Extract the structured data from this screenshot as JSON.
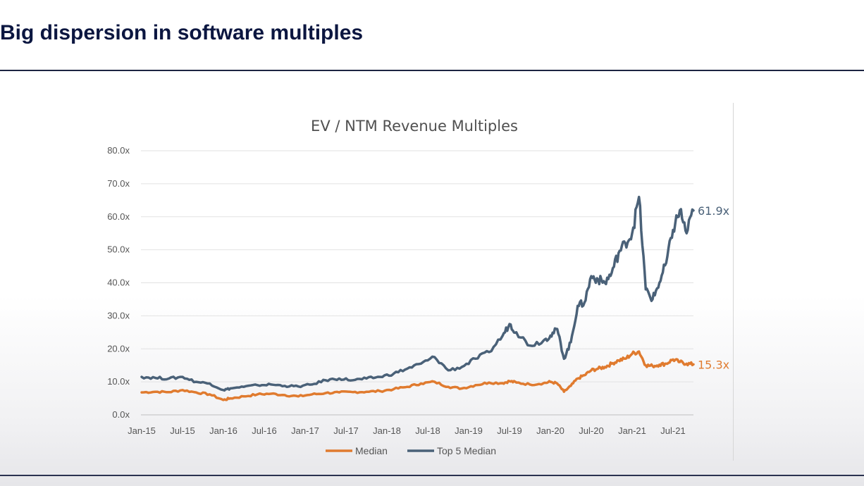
{
  "slide": {
    "title": "Big dispersion in software multiples"
  },
  "chart_data": {
    "type": "line",
    "title": "EV / NTM Revenue Multiples",
    "xlabel": "",
    "ylabel": "",
    "ylim": [
      0,
      80
    ],
    "y_ticks": [
      "0.0x",
      "10.0x",
      "20.0x",
      "30.0x",
      "40.0x",
      "50.0x",
      "60.0x",
      "70.0x",
      "80.0x"
    ],
    "x_ticks": [
      "Jan-15",
      "Jul-15",
      "Jan-16",
      "Jul-16",
      "Jan-17",
      "Jul-17",
      "Jan-18",
      "Jul-18",
      "Jan-19",
      "Jul-19",
      "Jan-20",
      "Jul-20",
      "Jan-21",
      "Jul-21"
    ],
    "grid": true,
    "legend_position": "bottom",
    "x": [
      "2015-01",
      "2015-03",
      "2015-05",
      "2015-07",
      "2015-09",
      "2015-11",
      "2016-01",
      "2016-02",
      "2016-04",
      "2016-06",
      "2016-08",
      "2016-10",
      "2016-12",
      "2017-02",
      "2017-04",
      "2017-06",
      "2017-08",
      "2017-10",
      "2017-12",
      "2018-02",
      "2018-04",
      "2018-06",
      "2018-08",
      "2018-10",
      "2018-12",
      "2019-02",
      "2019-04",
      "2019-06",
      "2019-07",
      "2019-08",
      "2019-10",
      "2019-12",
      "2020-01",
      "2020-02",
      "2020-03",
      "2020-04",
      "2020-05",
      "2020-06",
      "2020-07",
      "2020-08",
      "2020-09",
      "2020-10",
      "2020-11",
      "2020-12",
      "2021-01",
      "2021-02",
      "2021-03",
      "2021-04",
      "2021-05",
      "2021-06",
      "2021-07",
      "2021-08",
      "2021-09",
      "2021-10"
    ],
    "series": [
      {
        "name": "Median",
        "color": "#e07b2f",
        "end_label": "15.3x",
        "values": [
          6.8,
          7.0,
          6.9,
          7.5,
          6.8,
          6.2,
          4.5,
          5.0,
          5.6,
          6.2,
          6.4,
          6.0,
          5.6,
          6.2,
          6.6,
          6.8,
          6.9,
          7.0,
          7.2,
          7.8,
          8.5,
          9.5,
          10.0,
          8.5,
          8.0,
          9.0,
          9.8,
          9.6,
          10.2,
          9.8,
          9.2,
          9.6,
          10.0,
          9.5,
          7.0,
          8.8,
          11.0,
          12.0,
          13.5,
          14.0,
          14.5,
          15.5,
          16.5,
          17.0,
          18.5,
          19.2,
          15.0,
          14.8,
          15.2,
          15.5,
          16.8,
          16.0,
          15.5,
          15.3
        ]
      },
      {
        "name": "Top 5 Median",
        "color": "#4a6178",
        "end_label": "61.9x",
        "values": [
          11.5,
          11.2,
          11.0,
          11.5,
          10.0,
          9.5,
          7.5,
          8.0,
          8.5,
          9.0,
          9.2,
          8.8,
          8.6,
          9.2,
          10.5,
          11.0,
          10.5,
          11.0,
          11.5,
          12.5,
          14.0,
          15.5,
          17.5,
          13.5,
          14.5,
          17.0,
          19.0,
          24.0,
          27.5,
          25.0,
          21.0,
          22.5,
          24.0,
          26.0,
          17.0,
          22.0,
          33.0,
          34.0,
          42.0,
          41.0,
          40.0,
          43.0,
          49.0,
          52.0,
          55.0,
          66.0,
          38.0,
          35.0,
          40.0,
          46.0,
          56.0,
          62.0,
          55.0,
          61.9
        ]
      }
    ]
  }
}
